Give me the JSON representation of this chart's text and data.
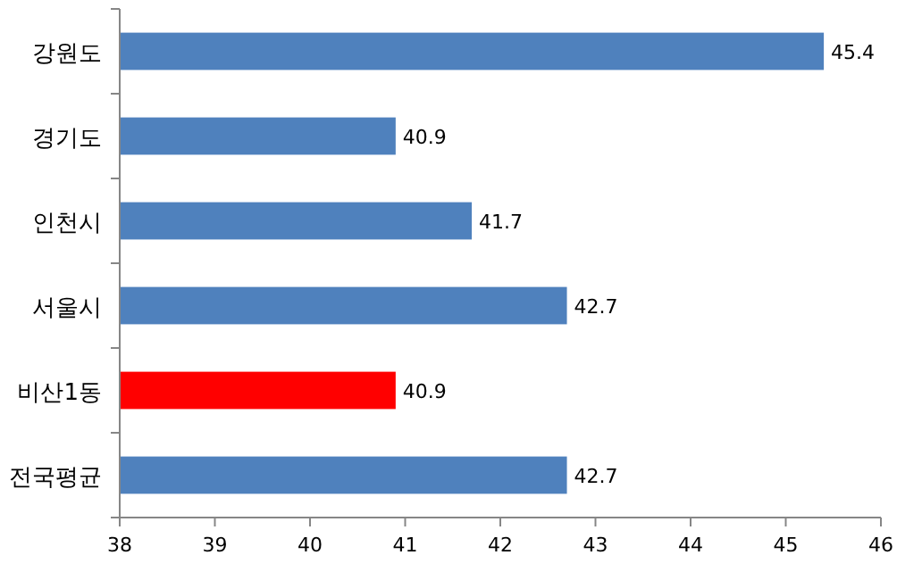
{
  "chart_data": {
    "type": "bar",
    "orientation": "horizontal",
    "categories": [
      "강원도",
      "경기도",
      "인천시",
      "서울시",
      "비산1동",
      "전국평균"
    ],
    "values": [
      45.4,
      40.9,
      41.7,
      42.7,
      40.9,
      42.7
    ],
    "colors": [
      "#4f81bd",
      "#4f81bd",
      "#4f81bd",
      "#4f81bd",
      "#ff0000",
      "#4f81bd"
    ],
    "xlim": [
      38,
      46
    ],
    "xticks": [
      38,
      39,
      40,
      41,
      42,
      43,
      44,
      45,
      46
    ],
    "data_labels": true
  }
}
